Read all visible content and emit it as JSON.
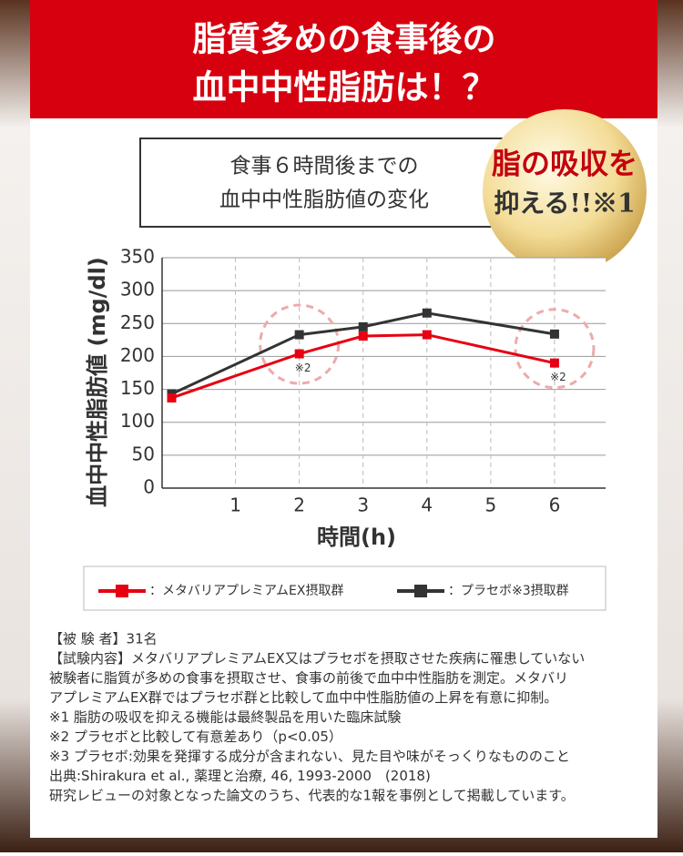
{
  "banner": {
    "lines": [
      "脂質多めの食事後の",
      "血中中性脂肪は！？"
    ]
  },
  "badge": {
    "lines": [
      "脂の吸収を",
      "抑える!!※1"
    ]
  },
  "chart_data": {
    "type": "line",
    "title": [
      "食事６時間後までの",
      "血中中性脂肪値の変化"
    ],
    "x_label": "時間(h)",
    "y_label": "血中中性脂肪値 (mg/dl)",
    "x": [
      0,
      2,
      3,
      4,
      6
    ],
    "series": [
      {
        "name": "：メタバリアプレミアムEX摂取群",
        "color": "#e60012",
        "values": [
          137,
          204,
          231,
          233,
          190
        ]
      },
      {
        "name": "：プラセボ※3摂取群",
        "color": "#333333",
        "values": [
          143,
          233,
          245,
          266,
          234
        ]
      }
    ],
    "xlim": [
      -0.15,
      6.8
    ],
    "xticks": [
      1,
      2,
      3,
      4,
      5,
      6
    ],
    "ylim": [
      0,
      350
    ],
    "yticks": [
      0,
      50,
      100,
      150,
      200,
      250,
      300,
      350
    ],
    "grid": true,
    "annotations": [
      {
        "text": "※2",
        "x": 2
      },
      {
        "text": "※2",
        "x": 6
      }
    ]
  },
  "notes": [
    "【被 験 者】31名",
    "【試験内容】メタバリアプレミアムEX又はプラセボを摂取させた疾病に罹患していない",
    "被験者に脂質が多めの食事を摂取させ、食事の前後で血中中性脂肪を測定。メタバリ",
    "アプレミアムEX群ではプラセボ群と比較して血中中性脂肪値の上昇を有意に抑制。",
    "※1 脂肪の吸収を抑える機能は最終製品を用いた臨床試験",
    "※2 プラセボと比較して有意差あり（p<0.05）",
    "※3 プラセボ:効果を発揮する成分が含まれない、見た目や味がそっくりなもののこと",
    "出典:Shirakura et al., 薬理と治療, 46, 1993-2000　(2018)",
    "研究レビューの対象となった論文のうち、代表的な1報を事例として掲載しています。"
  ]
}
